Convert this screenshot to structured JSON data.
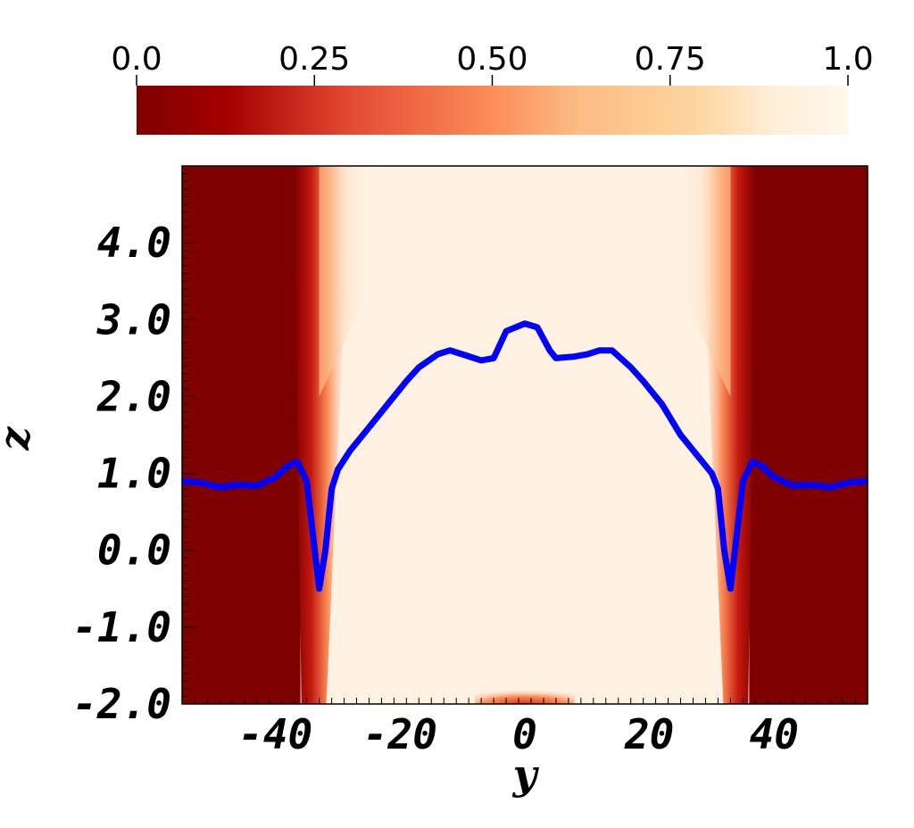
{
  "chart_data": {
    "type": "heatmap",
    "xlabel": "y",
    "ylabel": "z",
    "xlim": [
      -55,
      55
    ],
    "ylim": [
      -2.0,
      5.0
    ],
    "x_ticks": [
      -40,
      -20,
      0,
      20,
      40
    ],
    "x_tick_labels": [
      "-40",
      "-20",
      "0",
      "20",
      "40"
    ],
    "y_ticks": [
      -2.0,
      -1.0,
      0.0,
      1.0,
      2.0,
      3.0,
      4.0
    ],
    "y_tick_labels": [
      "-2.0",
      "-1.0",
      "0.0",
      "1.0",
      "2.0",
      "3.0",
      "4.0"
    ],
    "colorbar": {
      "range": [
        0.0,
        1.0
      ],
      "ticks": [
        0.0,
        0.25,
        0.5,
        0.75,
        1.0
      ],
      "tick_labels": [
        "0.0",
        "0.25",
        "0.50",
        "0.75",
        "1.0"
      ],
      "colormap": "OrRd",
      "placement": "top",
      "colors": [
        "#7f0000",
        "#a50000",
        "#e34a33",
        "#fc8d59",
        "#fdbb84",
        "#fdd49e",
        "#fef0d9",
        "#fff7ec"
      ]
    },
    "field_regions": {
      "left_dark_region_y": [
        -55,
        -36
      ],
      "right_dark_region_y": [
        36,
        55
      ],
      "bright_core_y": [
        -33,
        33
      ],
      "low_value": 0.0,
      "high_value": 1.0
    },
    "series": [
      {
        "color": "#0000ff",
        "points": [
          [
            -55,
            0.9
          ],
          [
            -52,
            0.88
          ],
          [
            -49,
            0.82
          ],
          [
            -46,
            0.85
          ],
          [
            -43,
            0.84
          ],
          [
            -40,
            0.95
          ],
          [
            -38,
            1.1
          ],
          [
            -36.5,
            1.15
          ],
          [
            -35,
            0.9
          ],
          [
            -34,
            0.2
          ],
          [
            -33,
            -0.5
          ],
          [
            -32,
            0.0
          ],
          [
            -31,
            0.8
          ],
          [
            -30,
            1.05
          ],
          [
            -28,
            1.3
          ],
          [
            -25,
            1.6
          ],
          [
            -22,
            1.9
          ],
          [
            -19,
            2.2
          ],
          [
            -17,
            2.38
          ],
          [
            -14,
            2.55
          ],
          [
            -12,
            2.6
          ],
          [
            -10,
            2.55
          ],
          [
            -7,
            2.47
          ],
          [
            -5,
            2.5
          ],
          [
            -3,
            2.85
          ],
          [
            0,
            2.95
          ],
          [
            2,
            2.9
          ],
          [
            4,
            2.6
          ],
          [
            5,
            2.5
          ],
          [
            8,
            2.52
          ],
          [
            10,
            2.55
          ],
          [
            12,
            2.6
          ],
          [
            14,
            2.6
          ],
          [
            17,
            2.38
          ],
          [
            19,
            2.2
          ],
          [
            22,
            1.9
          ],
          [
            25,
            1.5
          ],
          [
            28,
            1.2
          ],
          [
            30,
            1.0
          ],
          [
            31,
            0.8
          ],
          [
            32,
            0.0
          ],
          [
            33,
            -0.5
          ],
          [
            34,
            0.2
          ],
          [
            35,
            0.9
          ],
          [
            36.5,
            1.15
          ],
          [
            38,
            1.1
          ],
          [
            40,
            0.95
          ],
          [
            43,
            0.84
          ],
          [
            46,
            0.85
          ],
          [
            49,
            0.82
          ],
          [
            52,
            0.88
          ],
          [
            55,
            0.9
          ]
        ]
      }
    ]
  }
}
